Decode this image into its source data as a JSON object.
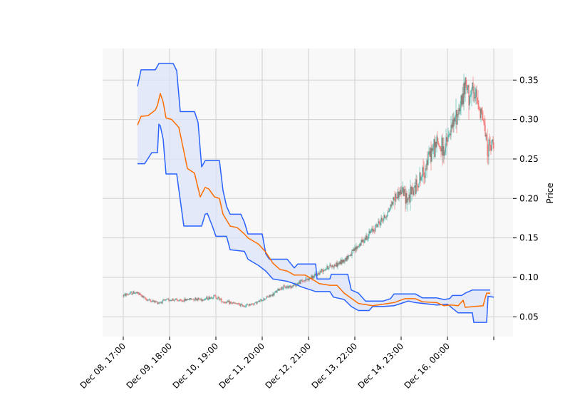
{
  "chart_data": {
    "type": "candlestick",
    "xlabel": "",
    "ylabel": "Price",
    "ylim": [
      0.025,
      0.39
    ],
    "y_ticks": [
      0.05,
      0.1,
      0.15,
      0.2,
      0.25,
      0.3,
      0.35
    ],
    "y_tick_labels": [
      "0.05",
      "0.10",
      "0.15",
      "0.20",
      "0.25",
      "0.30",
      "0.35"
    ],
    "x_tick_labels": [
      "Dec 08, 17:00",
      "Dec 09, 18:00",
      "Dec 10, 19:00",
      "Dec 11, 20:00",
      "Dec 12, 21:00",
      "Dec 13, 22:00",
      "Dec 14, 23:00",
      "Dec 16, 00:00"
    ],
    "grid": true,
    "colors": {
      "up": "#26a69a",
      "down": "#ef5350",
      "upper_band": "#2962ff",
      "lower_band": "#2962ff",
      "middle_band": "#ff6d00",
      "band_fill": "#dce4f8",
      "plot_bg": "#f8f8f8",
      "grid": "#cfcfcf"
    },
    "close_path": [
      [
        0,
        0.077
      ],
      [
        8,
        0.079
      ],
      [
        16,
        0.081
      ],
      [
        24,
        0.078
      ],
      [
        30,
        0.073
      ],
      [
        40,
        0.07
      ],
      [
        50,
        0.068
      ],
      [
        60,
        0.071
      ],
      [
        70,
        0.072
      ],
      [
        80,
        0.07
      ],
      [
        90,
        0.072
      ],
      [
        100,
        0.073
      ],
      [
        110,
        0.072
      ],
      [
        120,
        0.074
      ],
      [
        128,
        0.076
      ],
      [
        135,
        0.073
      ],
      [
        140,
        0.069
      ],
      [
        150,
        0.068
      ],
      [
        160,
        0.066
      ],
      [
        170,
        0.064
      ],
      [
        180,
        0.066
      ],
      [
        190,
        0.069
      ],
      [
        200,
        0.074
      ],
      [
        210,
        0.078
      ],
      [
        220,
        0.086
      ],
      [
        230,
        0.088
      ],
      [
        240,
        0.09
      ],
      [
        250,
        0.095
      ],
      [
        260,
        0.098
      ],
      [
        270,
        0.102
      ],
      [
        280,
        0.11
      ],
      [
        290,
        0.114
      ],
      [
        300,
        0.116
      ],
      [
        310,
        0.122
      ],
      [
        320,
        0.13
      ],
      [
        330,
        0.14
      ],
      [
        340,
        0.15
      ],
      [
        350,
        0.16
      ],
      [
        360,
        0.17
      ],
      [
        370,
        0.18
      ],
      [
        380,
        0.2
      ],
      [
        390,
        0.21
      ],
      [
        400,
        0.2
      ],
      [
        410,
        0.215
      ],
      [
        420,
        0.23
      ],
      [
        430,
        0.255
      ],
      [
        440,
        0.27
      ],
      [
        450,
        0.26
      ],
      [
        460,
        0.285
      ],
      [
        470,
        0.31
      ],
      [
        480,
        0.34
      ],
      [
        490,
        0.33
      ],
      [
        500,
        0.32
      ],
      [
        505,
        0.3
      ],
      [
        510,
        0.27
      ],
      [
        515,
        0.262
      ],
      [
        520,
        0.275
      ]
    ],
    "upper_band": [
      [
        20,
        0.342
      ],
      [
        25,
        0.363
      ],
      [
        45,
        0.363
      ],
      [
        50,
        0.371
      ],
      [
        70,
        0.371
      ],
      [
        75,
        0.362
      ],
      [
        80,
        0.31
      ],
      [
        100,
        0.31
      ],
      [
        105,
        0.296
      ],
      [
        110,
        0.24
      ],
      [
        115,
        0.248
      ],
      [
        135,
        0.248
      ],
      [
        140,
        0.21
      ],
      [
        145,
        0.19
      ],
      [
        150,
        0.18
      ],
      [
        165,
        0.18
      ],
      [
        170,
        0.17
      ],
      [
        175,
        0.155
      ],
      [
        195,
        0.155
      ],
      [
        200,
        0.13
      ],
      [
        205,
        0.123
      ],
      [
        230,
        0.123
      ],
      [
        240,
        0.112
      ],
      [
        245,
        0.117
      ],
      [
        270,
        0.117
      ],
      [
        272,
        0.098
      ],
      [
        290,
        0.098
      ],
      [
        292,
        0.104
      ],
      [
        315,
        0.104
      ],
      [
        320,
        0.084
      ],
      [
        330,
        0.08
      ],
      [
        340,
        0.07
      ],
      [
        365,
        0.07
      ],
      [
        375,
        0.073
      ],
      [
        380,
        0.079
      ],
      [
        410,
        0.079
      ],
      [
        420,
        0.074
      ],
      [
        440,
        0.074
      ],
      [
        450,
        0.072
      ],
      [
        458,
        0.073
      ],
      [
        462,
        0.077
      ],
      [
        475,
        0.077
      ],
      [
        480,
        0.08
      ],
      [
        490,
        0.084
      ],
      [
        515,
        0.084
      ]
    ],
    "middle_band": [
      [
        20,
        0.293
      ],
      [
        25,
        0.304
      ],
      [
        35,
        0.305
      ],
      [
        45,
        0.312
      ],
      [
        48,
        0.318
      ],
      [
        52,
        0.333
      ],
      [
        56,
        0.322
      ],
      [
        60,
        0.302
      ],
      [
        68,
        0.3
      ],
      [
        78,
        0.29
      ],
      [
        85,
        0.26
      ],
      [
        90,
        0.238
      ],
      [
        100,
        0.232
      ],
      [
        108,
        0.202
      ],
      [
        115,
        0.214
      ],
      [
        120,
        0.212
      ],
      [
        128,
        0.202
      ],
      [
        135,
        0.2
      ],
      [
        140,
        0.18
      ],
      [
        150,
        0.165
      ],
      [
        160,
        0.163
      ],
      [
        170,
        0.155
      ],
      [
        175,
        0.15
      ],
      [
        190,
        0.142
      ],
      [
        200,
        0.132
      ],
      [
        210,
        0.118
      ],
      [
        220,
        0.11
      ],
      [
        230,
        0.108
      ],
      [
        240,
        0.103
      ],
      [
        255,
        0.103
      ],
      [
        265,
        0.098
      ],
      [
        275,
        0.092
      ],
      [
        290,
        0.09
      ],
      [
        300,
        0.09
      ],
      [
        310,
        0.08
      ],
      [
        330,
        0.067
      ],
      [
        350,
        0.064
      ],
      [
        380,
        0.068
      ],
      [
        395,
        0.073
      ],
      [
        410,
        0.073
      ],
      [
        420,
        0.069
      ],
      [
        440,
        0.068
      ],
      [
        450,
        0.064
      ],
      [
        460,
        0.065
      ],
      [
        470,
        0.064
      ],
      [
        477,
        0.071
      ],
      [
        480,
        0.062
      ],
      [
        505,
        0.064
      ],
      [
        510,
        0.08
      ],
      [
        515,
        0.08
      ]
    ],
    "lower_band": [
      [
        20,
        0.244
      ],
      [
        30,
        0.244
      ],
      [
        40,
        0.258
      ],
      [
        48,
        0.258
      ],
      [
        50,
        0.294
      ],
      [
        52,
        0.292
      ],
      [
        56,
        0.275
      ],
      [
        60,
        0.231
      ],
      [
        75,
        0.231
      ],
      [
        80,
        0.198
      ],
      [
        85,
        0.165
      ],
      [
        110,
        0.165
      ],
      [
        115,
        0.18
      ],
      [
        118,
        0.181
      ],
      [
        125,
        0.165
      ],
      [
        130,
        0.152
      ],
      [
        145,
        0.152
      ],
      [
        150,
        0.135
      ],
      [
        170,
        0.133
      ],
      [
        175,
        0.123
      ],
      [
        190,
        0.115
      ],
      [
        200,
        0.108
      ],
      [
        210,
        0.098
      ],
      [
        230,
        0.095
      ],
      [
        240,
        0.092
      ],
      [
        250,
        0.088
      ],
      [
        260,
        0.085
      ],
      [
        270,
        0.082
      ],
      [
        280,
        0.082
      ],
      [
        290,
        0.082
      ],
      [
        295,
        0.075
      ],
      [
        310,
        0.072
      ],
      [
        320,
        0.063
      ],
      [
        330,
        0.058
      ],
      [
        345,
        0.058
      ],
      [
        350,
        0.063
      ],
      [
        365,
        0.063
      ],
      [
        380,
        0.064
      ],
      [
        390,
        0.067
      ],
      [
        400,
        0.07
      ],
      [
        410,
        0.068
      ],
      [
        440,
        0.065
      ],
      [
        455,
        0.066
      ],
      [
        470,
        0.055
      ],
      [
        480,
        0.055
      ],
      [
        490,
        0.055
      ],
      [
        492,
        0.043
      ],
      [
        510,
        0.043
      ],
      [
        512,
        0.076
      ],
      [
        520,
        0.075
      ]
    ]
  }
}
